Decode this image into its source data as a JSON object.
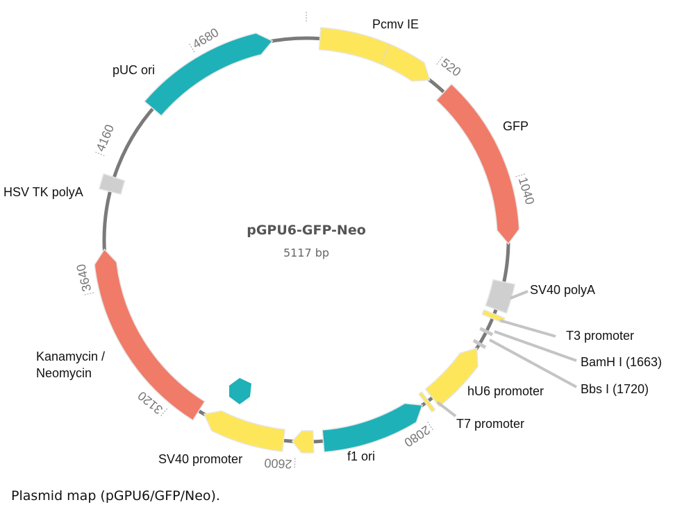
{
  "plasmid": {
    "name": "pGPU6-GFP-Neo",
    "size_label": "5117 bp",
    "length": 5117
  },
  "colors": {
    "backbone": "#7a7a7a",
    "yellow": "#fde65a",
    "teal": "#1fb1b8",
    "salmon": "#f07b68",
    "gray": "#cfcfcf"
  },
  "features": [
    {
      "name": "Pcmv IE",
      "start": 55,
      "end": 535,
      "direction": "cw",
      "color": "#fde65a",
      "divider": 327
    },
    {
      "name": "GFP",
      "start": 610,
      "end": 1295,
      "direction": "cw",
      "color": "#f07b68"
    },
    {
      "name": "SV40 polyA",
      "start": 1450,
      "end": 1565,
      "direction": "none",
      "color": "#cfcfcf"
    },
    {
      "name": "T3 promoter",
      "start": 1585,
      "end": 1605,
      "direction": "none",
      "color": "#fde65a"
    },
    {
      "name": "hU6 promoter",
      "start": 1740,
      "end": 2010,
      "direction": "ccw",
      "color": "#fde65a"
    },
    {
      "name": "T7 promoter",
      "start": 2030,
      "end": 2045,
      "direction": "none",
      "color": "#fde65a"
    },
    {
      "name": "f1 ori",
      "start": 2060,
      "end": 2490,
      "direction": "ccw",
      "color": "#1fb1b8"
    },
    {
      "name": "",
      "start": 2530,
      "end": 2615,
      "direction": "cw",
      "color": "#fde65a"
    },
    {
      "name": "SV40 promoter",
      "start": 2650,
      "end": 2990,
      "direction": "cw",
      "color": "#fde65a"
    },
    {
      "name": "Kanamycin / Neomycin",
      "start": 3015,
      "end": 3800,
      "direction": "cw",
      "color": "#f07b68"
    },
    {
      "name": "HSV TK polyA",
      "start": 4035,
      "end": 4095,
      "direction": "none",
      "color": "#cfcfcf"
    },
    {
      "name": "pUC ori",
      "start": 4415,
      "end": 4980,
      "direction": "cw",
      "color": "#1fb1b8"
    }
  ],
  "sites": [
    {
      "name": "BamH I (1663)",
      "position": 1663
    },
    {
      "name": "Bbs I (1720)",
      "position": 1720
    }
  ],
  "ticks": [
    0,
    520,
    1040,
    2080,
    2600,
    3120,
    3640,
    4160,
    4680
  ],
  "labels": {
    "pcmv": "Pcmv IE",
    "gfp": "GFP",
    "sv40polya": "SV40 polyA",
    "t3": "T3 promoter",
    "bamhi": "BamH I (1663)",
    "bbsi": "Bbs I (1720)",
    "hu6": "hU6 promoter",
    "t7": "T7 promoter",
    "f1": "f1 ori",
    "sv40prom": "SV40 promoter",
    "kan1": "Kanamycin /",
    "kan2": "Neomycin",
    "hsv": "HSV TK polyA",
    "puc": "pUC ori"
  },
  "caption": "Plasmid map (pGPU6/GFP/Neo)."
}
